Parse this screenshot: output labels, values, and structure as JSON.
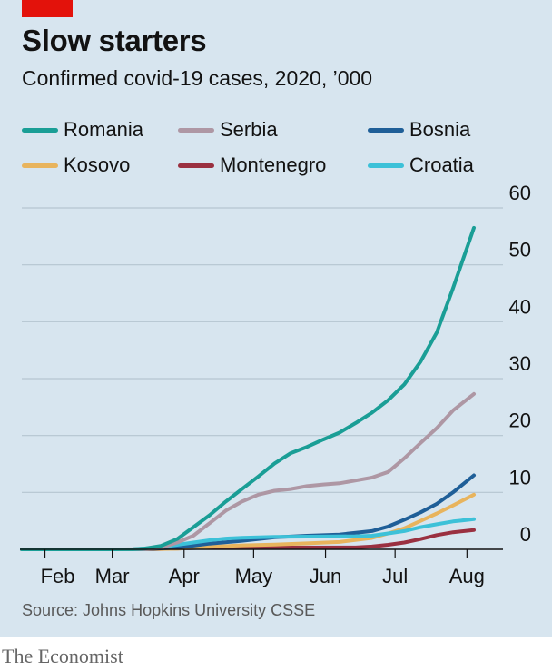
{
  "header": {
    "title": "Slow starters",
    "subtitle": "Confirmed covid-19 cases, 2020, ’000"
  },
  "source": "Source: Johns Hopkins University CSSE",
  "brand": "The Economist",
  "colors": {
    "panel": "#d7e5ef",
    "brand_red": "#e3120b",
    "grid": "#b5c5d0",
    "axis": "#121212"
  },
  "chart_data": {
    "type": "line",
    "title": "Slow starters",
    "subtitle": "Confirmed covid-19 cases, 2020, ’000",
    "xlabel": "",
    "ylabel": "",
    "ylim": [
      0,
      60
    ],
    "yticks": [
      0,
      10,
      20,
      30,
      40,
      50,
      60
    ],
    "y_axis_side": "right",
    "grid": true,
    "legend_position": "top",
    "x_tick_labels": [
      "Feb",
      "Mar",
      "Apr",
      "May",
      "Jun",
      "Jul",
      "Aug"
    ],
    "x_tick_dates": [
      "2020-02-01",
      "2020-03-01",
      "2020-04-01",
      "2020-05-01",
      "2020-06-01",
      "2020-07-01",
      "2020-08-01"
    ],
    "x_range": [
      "2020-01-22",
      "2020-08-04"
    ],
    "series": [
      {
        "name": "Romania",
        "color": "#1a9e96",
        "points": [
          [
            "2020-01-22",
            0
          ],
          [
            "2020-02-26",
            0
          ],
          [
            "2020-03-10",
            0.02
          ],
          [
            "2020-03-15",
            0.14
          ],
          [
            "2020-03-22",
            0.6
          ],
          [
            "2020-03-29",
            1.8
          ],
          [
            "2020-04-05",
            3.9
          ],
          [
            "2020-04-12",
            6.0
          ],
          [
            "2020-04-19",
            8.4
          ],
          [
            "2020-04-26",
            10.6
          ],
          [
            "2020-05-03",
            12.8
          ],
          [
            "2020-05-10",
            15.1
          ],
          [
            "2020-05-17",
            16.9
          ],
          [
            "2020-05-24",
            18.0
          ],
          [
            "2020-05-31",
            19.3
          ],
          [
            "2020-06-07",
            20.5
          ],
          [
            "2020-06-14",
            22.2
          ],
          [
            "2020-06-21",
            24.0
          ],
          [
            "2020-06-28",
            26.2
          ],
          [
            "2020-07-05",
            29.0
          ],
          [
            "2020-07-12",
            33.0
          ],
          [
            "2020-07-19",
            38.1
          ],
          [
            "2020-07-26",
            45.9
          ],
          [
            "2020-08-04",
            56.5
          ]
        ]
      },
      {
        "name": "Serbia",
        "color": "#ae97a4",
        "points": [
          [
            "2020-01-22",
            0
          ],
          [
            "2020-03-06",
            0
          ],
          [
            "2020-03-15",
            0.05
          ],
          [
            "2020-03-22",
            0.25
          ],
          [
            "2020-03-29",
            1.2
          ],
          [
            "2020-04-05",
            2.4
          ],
          [
            "2020-04-12",
            4.6
          ],
          [
            "2020-04-19",
            6.8
          ],
          [
            "2020-04-26",
            8.4
          ],
          [
            "2020-05-03",
            9.6
          ],
          [
            "2020-05-10",
            10.3
          ],
          [
            "2020-05-17",
            10.6
          ],
          [
            "2020-05-24",
            11.1
          ],
          [
            "2020-05-31",
            11.4
          ],
          [
            "2020-06-07",
            11.6
          ],
          [
            "2020-06-14",
            12.1
          ],
          [
            "2020-06-21",
            12.6
          ],
          [
            "2020-06-28",
            13.6
          ],
          [
            "2020-07-05",
            16.0
          ],
          [
            "2020-07-12",
            18.7
          ],
          [
            "2020-07-19",
            21.3
          ],
          [
            "2020-07-26",
            24.4
          ],
          [
            "2020-08-04",
            27.3
          ]
        ]
      },
      {
        "name": "Bosnia",
        "color": "#1f5f98",
        "points": [
          [
            "2020-01-22",
            0
          ],
          [
            "2020-03-05",
            0
          ],
          [
            "2020-03-15",
            0.02
          ],
          [
            "2020-03-29",
            0.3
          ],
          [
            "2020-04-12",
            1.0
          ],
          [
            "2020-04-26",
            1.5
          ],
          [
            "2020-05-10",
            2.1
          ],
          [
            "2020-05-24",
            2.4
          ],
          [
            "2020-06-07",
            2.6
          ],
          [
            "2020-06-21",
            3.2
          ],
          [
            "2020-06-28",
            4.0
          ],
          [
            "2020-07-05",
            5.2
          ],
          [
            "2020-07-12",
            6.5
          ],
          [
            "2020-07-19",
            8.0
          ],
          [
            "2020-07-26",
            10.0
          ],
          [
            "2020-08-04",
            13.0
          ]
        ]
      },
      {
        "name": "Kosovo",
        "color": "#e8b45d",
        "points": [
          [
            "2020-01-22",
            0
          ],
          [
            "2020-03-13",
            0
          ],
          [
            "2020-03-29",
            0.1
          ],
          [
            "2020-04-12",
            0.45
          ],
          [
            "2020-04-26",
            0.7
          ],
          [
            "2020-05-10",
            0.85
          ],
          [
            "2020-05-24",
            1.05
          ],
          [
            "2020-06-07",
            1.3
          ],
          [
            "2020-06-21",
            2.0
          ],
          [
            "2020-06-28",
            2.8
          ],
          [
            "2020-07-05",
            3.7
          ],
          [
            "2020-07-12",
            5.0
          ],
          [
            "2020-07-19",
            6.3
          ],
          [
            "2020-07-26",
            7.7
          ],
          [
            "2020-08-04",
            9.6
          ]
        ]
      },
      {
        "name": "Montenegro",
        "color": "#9a3040",
        "points": [
          [
            "2020-01-22",
            0
          ],
          [
            "2020-03-17",
            0
          ],
          [
            "2020-03-29",
            0.15
          ],
          [
            "2020-04-12",
            0.3
          ],
          [
            "2020-05-10",
            0.32
          ],
          [
            "2020-06-14",
            0.33
          ],
          [
            "2020-06-21",
            0.5
          ],
          [
            "2020-06-28",
            0.8
          ],
          [
            "2020-07-05",
            1.2
          ],
          [
            "2020-07-12",
            1.8
          ],
          [
            "2020-07-19",
            2.5
          ],
          [
            "2020-07-26",
            3.0
          ],
          [
            "2020-08-04",
            3.4
          ]
        ]
      },
      {
        "name": "Croatia",
        "color": "#3cc1d8",
        "points": [
          [
            "2020-01-22",
            0
          ],
          [
            "2020-02-25",
            0
          ],
          [
            "2020-03-10",
            0.01
          ],
          [
            "2020-03-20",
            0.3
          ],
          [
            "2020-03-29",
            0.8
          ],
          [
            "2020-04-05",
            1.2
          ],
          [
            "2020-04-12",
            1.6
          ],
          [
            "2020-04-19",
            1.9
          ],
          [
            "2020-04-26",
            2.05
          ],
          [
            "2020-05-10",
            2.2
          ],
          [
            "2020-05-31",
            2.25
          ],
          [
            "2020-06-14",
            2.3
          ],
          [
            "2020-06-21",
            2.4
          ],
          [
            "2020-06-28",
            2.8
          ],
          [
            "2020-07-05",
            3.2
          ],
          [
            "2020-07-12",
            3.9
          ],
          [
            "2020-07-19",
            4.4
          ],
          [
            "2020-07-26",
            4.9
          ],
          [
            "2020-08-04",
            5.3
          ]
        ]
      }
    ]
  }
}
